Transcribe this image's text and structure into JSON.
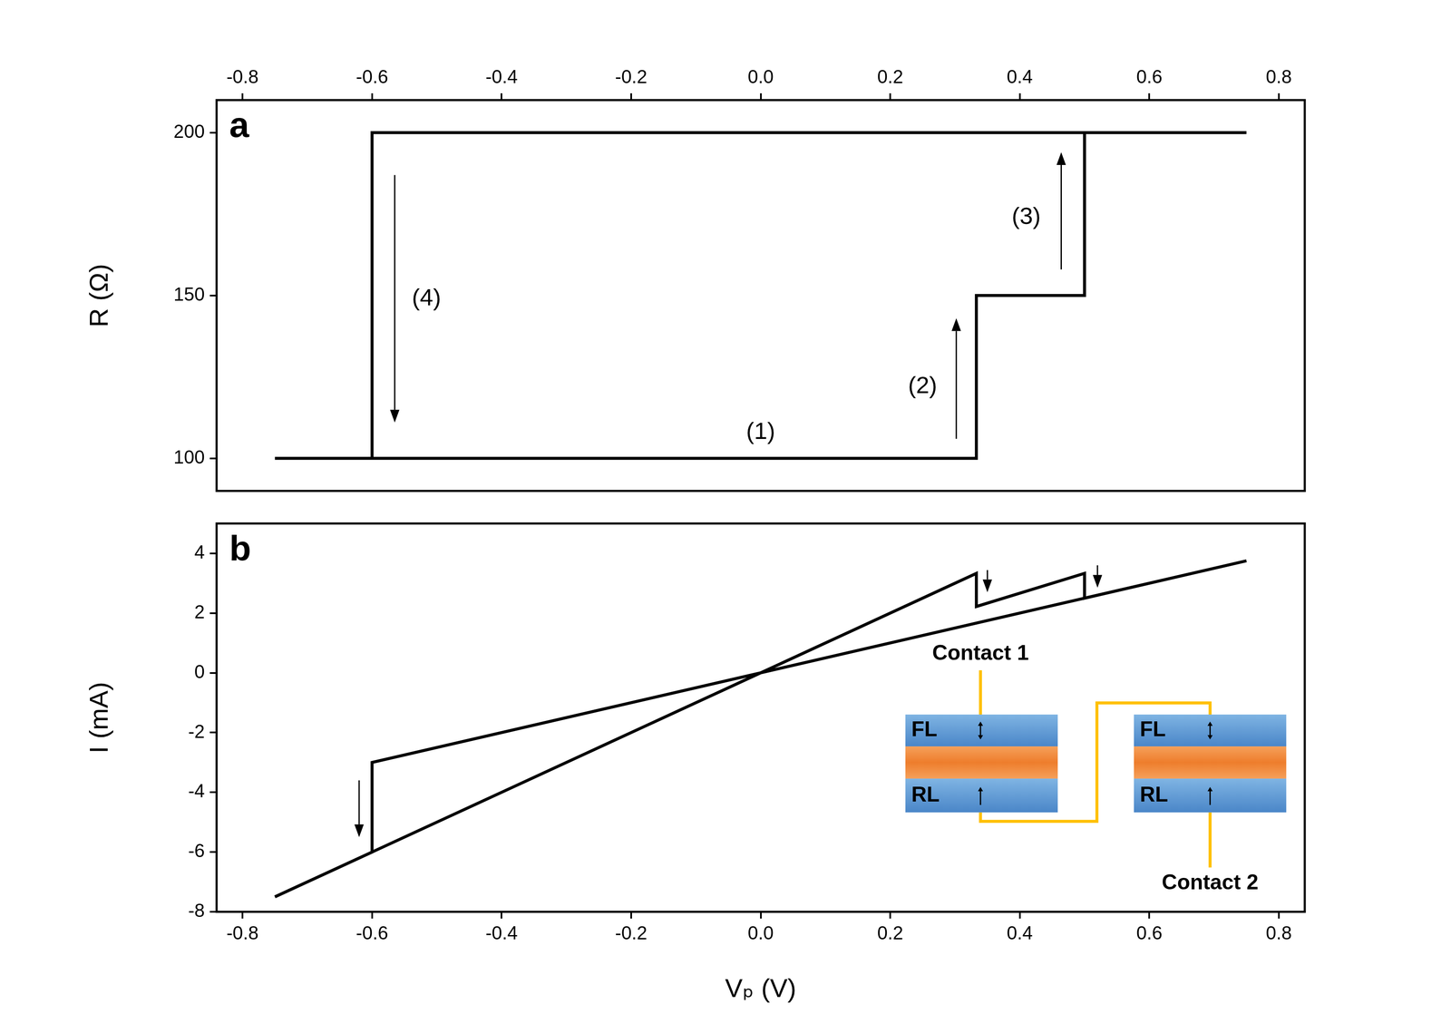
{
  "chart_data": [
    {
      "type": "line",
      "title": "a",
      "ylabel": "R (Ω)",
      "x": [
        -0.6,
        0.333,
        0.333,
        0.5,
        0.5,
        0.75,
        -0.6,
        -0.6,
        -0.75
      ],
      "values": [
        100,
        100,
        150,
        150,
        200,
        200,
        200,
        100,
        100
      ],
      "color": "#000000",
      "xlim": [
        -0.84,
        0.84
      ],
      "xticks": [
        -0.8,
        -0.6,
        -0.4,
        -0.2,
        {
          "value": 0,
          "label": "0.0"
        },
        0.2,
        0.4,
        0.6,
        0.8
      ],
      "ylim": [
        90,
        210
      ],
      "yticks": [
        100,
        150,
        200
      ],
      "grid": false,
      "annotations": [
        {
          "text": "(1)",
          "x": 0.0,
          "y": 108
        },
        {
          "text": "(2)",
          "x": 0.25,
          "y": 122
        },
        {
          "text": "(3)",
          "x": 0.41,
          "y": 174
        },
        {
          "text": "(4)",
          "x": -0.516,
          "y": 149
        }
      ],
      "arrows": [
        {
          "x": 0.302,
          "from": 106,
          "to": 143
        },
        {
          "x": 0.464,
          "from": 158,
          "to": 194
        },
        {
          "x": -0.565,
          "from": 187,
          "to": 111
        }
      ]
    },
    {
      "type": "line",
      "title": "b",
      "xlabel": "Vₚ (V)",
      "ylabel": "I (mA)",
      "x": [
        -0.6,
        0.333,
        0.333,
        0.5,
        0.5,
        0.75,
        -0.6,
        -0.6,
        -0.75
      ],
      "values": [
        -6,
        3.33,
        2.22,
        3.33,
        2.5,
        3.75,
        -3,
        -6,
        -7.5
      ],
      "color": "#000000",
      "xlim": [
        -0.84,
        0.84
      ],
      "xticks": [
        -0.8,
        -0.6,
        -0.4,
        -0.2,
        {
          "value": 0,
          "label": "0.0"
        },
        0.2,
        0.4,
        0.6,
        0.8
      ],
      "ylim": [
        -8,
        5
      ],
      "yticks": [
        -8,
        -6,
        -4,
        -2,
        0,
        2,
        4
      ],
      "grid": false,
      "arrows": [
        {
          "x": 0.35,
          "from": 3.44,
          "to": 2.7
        },
        {
          "x": 0.52,
          "from": 3.6,
          "to": 2.85
        },
        {
          "x": -0.62,
          "from": -3.6,
          "to": -5.5
        }
      ]
    }
  ],
  "inset": {
    "contacts": [
      "Contact 1",
      "Contact 2"
    ],
    "layers": [
      "FL",
      "RL"
    ]
  }
}
